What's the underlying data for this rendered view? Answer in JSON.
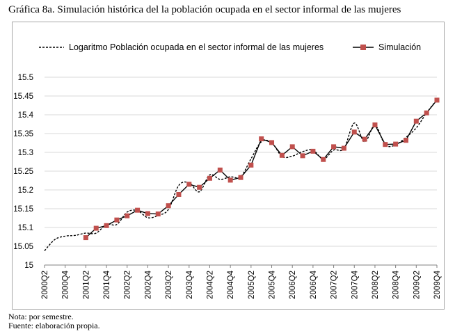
{
  "title": "Gráfica 8a. Simulación histórica del la población ocupada en el sector informal de las mujeres",
  "notes": {
    "nota": "Nota: por semestre.",
    "fuente": "Fuente: elaboración propia."
  },
  "colors": {
    "simulation": "#c0504d",
    "log_series": "#000000",
    "frame": "#a6a6a6",
    "grid": "#d9d9d9"
  },
  "chart_data": {
    "type": "line",
    "title": "Gráfica 8a. Simulación histórica del la población ocupada en el sector informal de las mujeres",
    "xlabel": "",
    "ylabel": "",
    "ylim": [
      15,
      15.5
    ],
    "y_ticks": [
      "15",
      "15.05",
      "15.1",
      "15.15",
      "15.2",
      "15.25",
      "15.3",
      "15.35",
      "15.4",
      "15.45",
      "15.5"
    ],
    "grid": "horizontal",
    "legend_position": "top",
    "categories": [
      "2000Q2",
      "2000Q4",
      "2001Q2",
      "2001Q4",
      "2002Q2",
      "2002Q4",
      "2003Q2",
      "2003Q4",
      "2004Q2",
      "2004Q4",
      "2005Q2",
      "2005Q4",
      "2006Q2",
      "2006Q4",
      "2007Q2",
      "2007Q4",
      "2008Q2",
      "2008Q4",
      "2009Q2",
      "2009Q4"
    ],
    "series": [
      {
        "name": "Logaritmo Población ocupada en el sector informal de las mujeres",
        "style": "dashed",
        "x": [
          "2000Q2",
          "2000Q3",
          "2000Q4",
          "2001Q1",
          "2001Q2",
          "2001Q3",
          "2001Q4",
          "2002Q1",
          "2002Q2",
          "2002Q3",
          "2002Q4",
          "2003Q1",
          "2003Q2",
          "2003Q3",
          "2003Q4",
          "2004Q1",
          "2004Q2",
          "2004Q3",
          "2004Q4",
          "2005Q1",
          "2005Q2",
          "2005Q3",
          "2005Q4",
          "2006Q1",
          "2006Q2",
          "2006Q3",
          "2006Q4",
          "2007Q1",
          "2007Q2",
          "2007Q3",
          "2007Q4",
          "2008Q1",
          "2008Q2",
          "2008Q3",
          "2008Q4",
          "2009Q1",
          "2009Q2",
          "2009Q3",
          "2009Q4"
        ],
        "values": [
          15.038,
          15.068,
          15.077,
          15.079,
          15.085,
          15.085,
          15.108,
          15.108,
          15.141,
          15.145,
          15.126,
          15.132,
          15.148,
          15.212,
          15.219,
          15.195,
          15.24,
          15.228,
          15.235,
          15.235,
          15.283,
          15.328,
          15.326,
          15.289,
          15.29,
          15.302,
          15.306,
          15.282,
          15.306,
          15.31,
          15.378,
          15.328,
          15.372,
          15.32,
          15.32,
          15.34,
          15.365,
          15.405,
          15.44
        ]
      },
      {
        "name": "Simulación",
        "style": "solid-square-markers",
        "x": [
          "2001Q2",
          "2001Q3",
          "2001Q4",
          "2002Q1",
          "2002Q2",
          "2002Q3",
          "2002Q4",
          "2003Q1",
          "2003Q2",
          "2003Q3",
          "2003Q4",
          "2004Q1",
          "2004Q2",
          "2004Q3",
          "2004Q4",
          "2005Q1",
          "2005Q2",
          "2005Q3",
          "2005Q4",
          "2006Q1",
          "2006Q2",
          "2006Q3",
          "2006Q4",
          "2007Q1",
          "2007Q2",
          "2007Q3",
          "2007Q4",
          "2008Q1",
          "2008Q2",
          "2008Q3",
          "2008Q4",
          "2009Q1",
          "2009Q2",
          "2009Q3",
          "2009Q4"
        ],
        "values": [
          15.073,
          15.098,
          15.105,
          15.12,
          15.131,
          15.146,
          15.137,
          15.136,
          15.158,
          15.188,
          15.215,
          15.207,
          15.231,
          15.253,
          15.226,
          15.233,
          15.266,
          15.336,
          15.326,
          15.292,
          15.315,
          15.291,
          15.303,
          15.281,
          15.315,
          15.311,
          15.354,
          15.335,
          15.373,
          15.321,
          15.322,
          15.332,
          15.383,
          15.405,
          15.439
        ]
      }
    ]
  }
}
